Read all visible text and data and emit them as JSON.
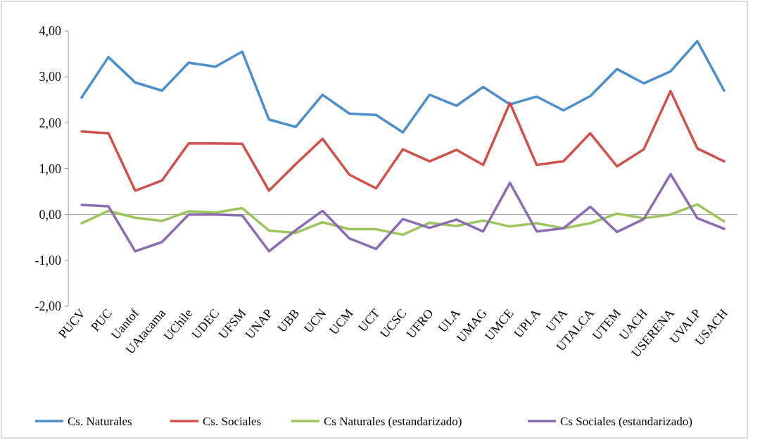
{
  "chart_data": {
    "type": "line",
    "categories": [
      "PUCV",
      "PUC",
      "Uantof",
      "UAtacama",
      "UChile",
      "UDEC",
      "UFSM",
      "UNAP",
      "UBB",
      "UCN",
      "UCM",
      "UCT",
      "UCSC",
      "UFRO",
      "ULA",
      "UMAG",
      "UMCE",
      "UPLA",
      "UTA",
      "UTALCA",
      "UTEM",
      "UACH",
      "USERENA",
      "UVALP",
      "USACH"
    ],
    "series": [
      {
        "name": "Cs. Naturales",
        "color": "#4a8ecc",
        "values": [
          2.55,
          3.43,
          2.88,
          2.7,
          3.31,
          3.22,
          3.55,
          2.07,
          1.91,
          2.61,
          2.2,
          2.17,
          1.79,
          2.61,
          2.37,
          2.78,
          2.4,
          2.57,
          2.27,
          2.58,
          3.17,
          2.86,
          3.12,
          3.78,
          2.7
        ]
      },
      {
        "name": "Cs. Sociales",
        "color": "#d1504c",
        "values": [
          1.81,
          1.77,
          0.52,
          0.74,
          1.55,
          1.55,
          1.54,
          0.52,
          1.1,
          1.65,
          0.87,
          0.57,
          1.42,
          1.16,
          1.41,
          1.08,
          2.43,
          1.08,
          1.16,
          1.77,
          1.05,
          1.42,
          2.69,
          1.44,
          1.16
        ]
      },
      {
        "name": "Cs Naturales (estandarizado)",
        "color": "#9bc45a",
        "values": [
          -0.19,
          0.08,
          -0.07,
          -0.14,
          0.07,
          0.04,
          0.14,
          -0.35,
          -0.4,
          -0.17,
          -0.32,
          -0.32,
          -0.44,
          -0.18,
          -0.25,
          -0.13,
          -0.26,
          -0.19,
          -0.3,
          -0.19,
          0.02,
          -0.08,
          0.0,
          0.22,
          -0.15
        ]
      },
      {
        "name": "Cs Sociales (estandarizado)",
        "color": "#8b6bb1",
        "values": [
          0.21,
          0.18,
          -0.8,
          -0.6,
          0.0,
          0.0,
          -0.02,
          -0.8,
          -0.34,
          0.08,
          -0.52,
          -0.75,
          -0.1,
          -0.29,
          -0.11,
          -0.37,
          0.69,
          -0.37,
          -0.3,
          0.17,
          -0.38,
          -0.1,
          0.88,
          -0.08,
          -0.31
        ]
      }
    ],
    "ylim": [
      -2,
      4
    ],
    "yticks": [
      {
        "value": -2,
        "label": "-2,00"
      },
      {
        "value": -1,
        "label": "-1,00"
      },
      {
        "value": 0,
        "label": "0,00"
      },
      {
        "value": 1,
        "label": "1,00"
      },
      {
        "value": 2,
        "label": "2,00"
      },
      {
        "value": 3,
        "label": "3,00"
      },
      {
        "value": 4,
        "label": "4,00"
      }
    ],
    "legend": "bottom",
    "marker": "none",
    "line_style": "solid"
  }
}
